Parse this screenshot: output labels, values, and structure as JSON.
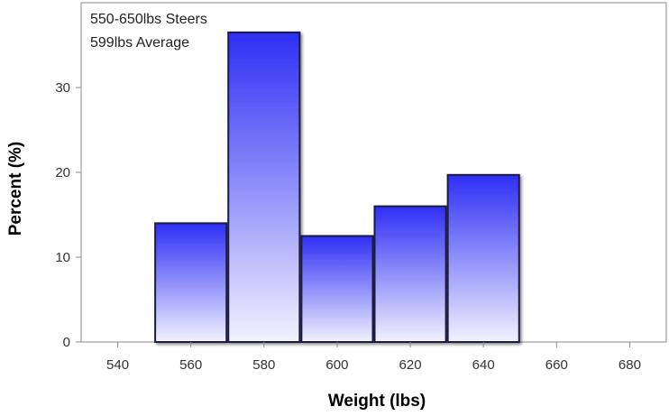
{
  "chart_data": {
    "type": "bar",
    "title": "",
    "inset_text": [
      "550-650lbs Steers",
      "599lbs Average"
    ],
    "xlabel": "Weight (lbs)",
    "ylabel": "Percent (%)",
    "xlim": [
      530,
      690
    ],
    "ylim": [
      0,
      40
    ],
    "xticks": [
      "540",
      "560",
      "580",
      "600",
      "620",
      "640",
      "660",
      "680"
    ],
    "yticks": [
      "0",
      "10",
      "20",
      "30"
    ],
    "bins": [
      {
        "x0": 550,
        "x1": 570,
        "value": 14.0
      },
      {
        "x0": 570,
        "x1": 590,
        "value": 36.5
      },
      {
        "x0": 590,
        "x1": 610,
        "value": 12.5
      },
      {
        "x0": 610,
        "x1": 630,
        "value": 16.0
      },
      {
        "x0": 630,
        "x1": 650,
        "value": 19.7
      }
    ],
    "grid": false,
    "colors": {
      "bar_top": "#2e2ef5",
      "bar_bottom": "#f2f2ff",
      "bar_outline": "#1a1a40"
    }
  }
}
